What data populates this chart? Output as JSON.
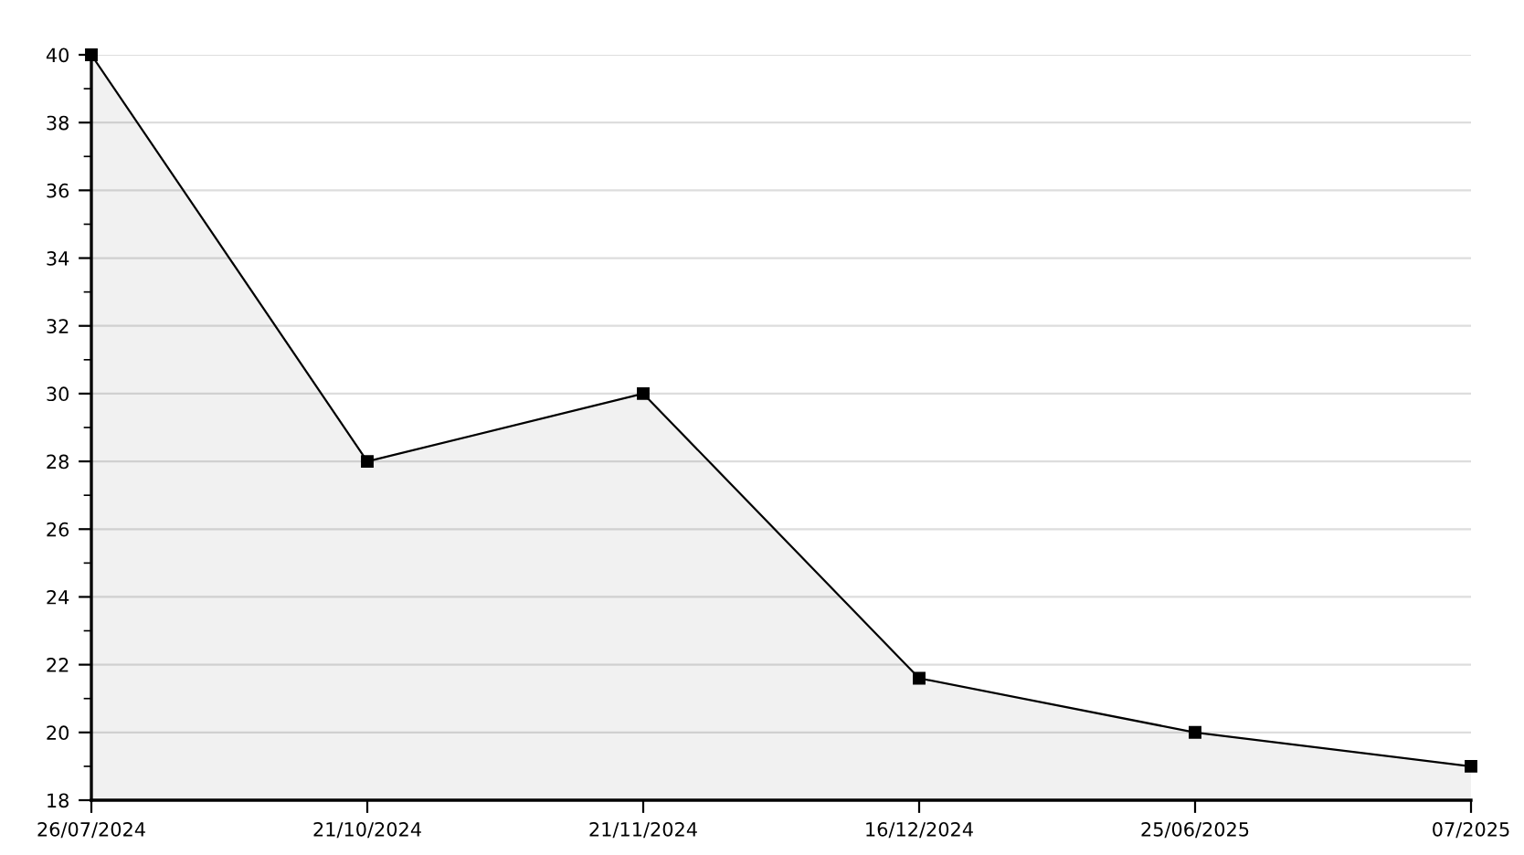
{
  "chart_data": {
    "type": "area",
    "categories": [
      "26/07/2024",
      "21/10/2024",
      "21/11/2024",
      "16/12/2024",
      "25/06/2025",
      "07/2025"
    ],
    "series": [
      {
        "color": "#000000",
        "values": [
          40,
          28,
          30,
          21.6,
          20,
          19
        ]
      }
    ],
    "ylim": [
      18,
      40
    ],
    "yticks": [
      18,
      {
        "value": 19,
        "label": null
      },
      20,
      {
        "value": 21,
        "label": null
      },
      22,
      {
        "value": 23,
        "label": null
      },
      24,
      {
        "value": 25,
        "label": null
      },
      26,
      {
        "value": 27,
        "label": null
      },
      28,
      {
        "value": 29,
        "label": null
      },
      30,
      {
        "value": 31,
        "label": null
      },
      32,
      {
        "value": 33,
        "label": null
      },
      34,
      {
        "value": 35,
        "label": null
      },
      36,
      {
        "value": 37,
        "label": null
      },
      38,
      {
        "value": 39,
        "label": null
      },
      40
    ],
    "grid": "y",
    "marker": "square",
    "line_style": "solid",
    "legend": false
  }
}
